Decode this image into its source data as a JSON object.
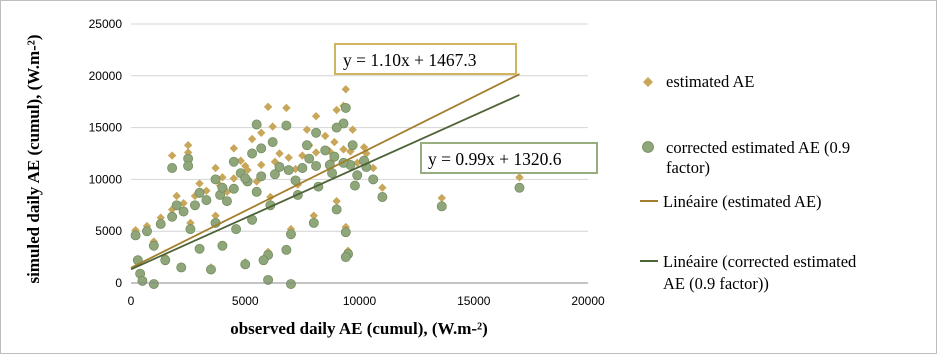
{
  "chart_data": {
    "type": "scatter",
    "title": "",
    "xlabel": "observed daily AE (cumul), (W.m-²)",
    "ylabel": "simuled daily AE (cumul), (W.m-²)",
    "xlim": [
      0,
      20000
    ],
    "ylim": [
      0,
      25000
    ],
    "x_ticks": [
      "0",
      "5000",
      "10000",
      "15000",
      "20000"
    ],
    "y_ticks": [
      "0",
      "5000",
      "10000",
      "15000",
      "20000",
      "25000"
    ],
    "grid": "horizontal",
    "legend_position": "right",
    "series": [
      {
        "name": "estimated AE",
        "marker": "diamond",
        "color": "#c8a75a",
        "points": [
          [
            1800,
            12300
          ],
          [
            2500,
            13300
          ],
          [
            2500,
            12600
          ],
          [
            3700,
            11100
          ],
          [
            4800,
            11800
          ],
          [
            4500,
            13000
          ],
          [
            5300,
            13900
          ],
          [
            5700,
            14500
          ],
          [
            6000,
            17000
          ],
          [
            6800,
            16900
          ],
          [
            6200,
            15100
          ],
          [
            7700,
            14800
          ],
          [
            8100,
            16100
          ],
          [
            9400,
            18700
          ],
          [
            9300,
            17100
          ],
          [
            9000,
            16700
          ],
          [
            9700,
            14800
          ],
          [
            8900,
            13600
          ],
          [
            9600,
            12700
          ],
          [
            10300,
            12500
          ],
          [
            10200,
            13100
          ],
          [
            11000,
            9200
          ],
          [
            13600,
            8200
          ],
          [
            17000,
            10200
          ],
          [
            9400,
            5400
          ],
          [
            9500,
            3100
          ],
          [
            200,
            5100
          ],
          [
            700,
            5500
          ],
          [
            1300,
            6300
          ],
          [
            1800,
            7100
          ],
          [
            2300,
            7700
          ],
          [
            2800,
            8400
          ],
          [
            3300,
            8900
          ],
          [
            3900,
            9400
          ],
          [
            4500,
            10100
          ],
          [
            5100,
            10900
          ],
          [
            5700,
            11400
          ],
          [
            6300,
            11700
          ],
          [
            6900,
            12100
          ],
          [
            7500,
            12300
          ],
          [
            8100,
            12600
          ],
          [
            8700,
            12700
          ],
          [
            9300,
            12900
          ],
          [
            2000,
            8400
          ],
          [
            3000,
            9600
          ],
          [
            4000,
            10200
          ],
          [
            5000,
            11300
          ],
          [
            6500,
            12500
          ],
          [
            7800,
            13300
          ],
          [
            8500,
            14200
          ],
          [
            9900,
            11600
          ],
          [
            10600,
            11100
          ],
          [
            6000,
            3000
          ],
          [
            5000,
            2000
          ],
          [
            3500,
            1500
          ],
          [
            7000,
            5200
          ],
          [
            8000,
            6500
          ],
          [
            9000,
            7900
          ],
          [
            1000,
            4000
          ],
          [
            1500,
            2500
          ],
          [
            400,
            1000
          ],
          [
            4200,
            8800
          ],
          [
            5500,
            9800
          ],
          [
            7200,
            11000
          ],
          [
            8800,
            11800
          ],
          [
            3700,
            6500
          ],
          [
            2600,
            5800
          ],
          [
            6100,
            8300
          ],
          [
            7300,
            9500
          ]
        ]
      },
      {
        "name": "corrected estimated AE (0.9 factor)",
        "marker": "circle",
        "color": "#8fa67a",
        "points": [
          [
            1800,
            11100
          ],
          [
            2500,
            12000
          ],
          [
            2500,
            11300
          ],
          [
            3700,
            10000
          ],
          [
            4800,
            10600
          ],
          [
            4500,
            11700
          ],
          [
            5300,
            12500
          ],
          [
            5700,
            13000
          ],
          [
            5500,
            15300
          ],
          [
            6800,
            15200
          ],
          [
            6200,
            13600
          ],
          [
            7700,
            13300
          ],
          [
            8100,
            14500
          ],
          [
            9400,
            16900
          ],
          [
            9300,
            15400
          ],
          [
            9000,
            15000
          ],
          [
            9700,
            13300
          ],
          [
            8900,
            12200
          ],
          [
            9600,
            11400
          ],
          [
            10300,
            11200
          ],
          [
            10200,
            11800
          ],
          [
            11000,
            8300
          ],
          [
            13600,
            7400
          ],
          [
            17000,
            9200
          ],
          [
            9400,
            4900
          ],
          [
            9500,
            2800
          ],
          [
            9400,
            2500
          ],
          [
            6000,
            300
          ],
          [
            7000,
            -100
          ],
          [
            200,
            4600
          ],
          [
            700,
            5000
          ],
          [
            1300,
            5700
          ],
          [
            1800,
            6400
          ],
          [
            2300,
            6900
          ],
          [
            2800,
            7500
          ],
          [
            3300,
            8000
          ],
          [
            3900,
            8500
          ],
          [
            4500,
            9100
          ],
          [
            5100,
            9800
          ],
          [
            5700,
            10300
          ],
          [
            6300,
            10500
          ],
          [
            6900,
            10900
          ],
          [
            7500,
            11100
          ],
          [
            8100,
            11300
          ],
          [
            8700,
            11400
          ],
          [
            9300,
            11600
          ],
          [
            2000,
            7500
          ],
          [
            3000,
            8700
          ],
          [
            4000,
            9200
          ],
          [
            5000,
            10100
          ],
          [
            6500,
            11200
          ],
          [
            7800,
            12000
          ],
          [
            8500,
            12800
          ],
          [
            9900,
            10400
          ],
          [
            10600,
            10000
          ],
          [
            6000,
            2700
          ],
          [
            5000,
            1800
          ],
          [
            3500,
            1300
          ],
          [
            7000,
            4700
          ],
          [
            8000,
            5800
          ],
          [
            9000,
            7100
          ],
          [
            1000,
            3600
          ],
          [
            1500,
            2200
          ],
          [
            400,
            900
          ],
          [
            4200,
            7900
          ],
          [
            5500,
            8800
          ],
          [
            7200,
            9900
          ],
          [
            8800,
            10600
          ],
          [
            3700,
            5800
          ],
          [
            2600,
            5200
          ],
          [
            6100,
            7500
          ],
          [
            7300,
            8500
          ],
          [
            500,
            200
          ],
          [
            1000,
            -100
          ],
          [
            300,
            2200
          ],
          [
            4000,
            3600
          ],
          [
            5800,
            2200
          ],
          [
            6800,
            3200
          ],
          [
            3000,
            3300
          ],
          [
            2200,
            1500
          ],
          [
            8200,
            9300
          ],
          [
            9800,
            9400
          ],
          [
            4600,
            5200
          ],
          [
            5300,
            6100
          ]
        ]
      }
    ],
    "trendlines": [
      {
        "name": "Linéaire (estimated AE)",
        "slope": 1.1,
        "intercept": 1467.3,
        "x_range": [
          0,
          17000
        ],
        "color": "#a37f2d",
        "equation": "y = 1.10x + 1467.3"
      },
      {
        "name": "Linéaire (corrected estimated AE (0.9 factor))",
        "slope": 0.99,
        "intercept": 1320.6,
        "x_range": [
          0,
          17000
        ],
        "color": "#4f6338",
        "equation": "y = 0.99x + 1320.6"
      }
    ],
    "legend": [
      {
        "marker": "diamond",
        "lines": [
          "estimated AE"
        ]
      },
      {
        "marker": "circle",
        "lines": [
          "corrected estimated AE (0.9",
          "factor)"
        ]
      },
      {
        "marker": "line-gold",
        "lines": [
          "Linéaire (estimated AE)"
        ]
      },
      {
        "marker": "line-green",
        "lines": [
          "Linéaire (corrected estimated",
          "AE (0.9 factor))"
        ]
      }
    ],
    "equation_box_colors": {
      "gold": "#d1b45e",
      "green": "#98ad7e"
    }
  }
}
